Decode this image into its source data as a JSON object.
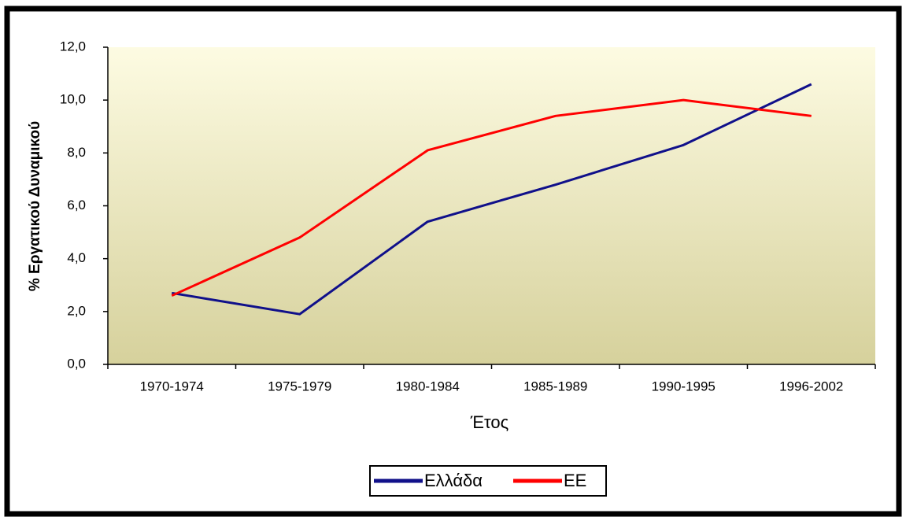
{
  "chart_data": {
    "type": "line",
    "y_label": "% Εργατικού Δυναμικού",
    "x_label": "Έτος",
    "categories": [
      "1970-1974",
      "1975-1979",
      "1980-1984",
      "1985-1989",
      "1990-1995",
      "1996-2002"
    ],
    "series": [
      {
        "name": "Ελλάδα",
        "color": "#10108a",
        "values": [
          2.7,
          1.9,
          5.4,
          6.8,
          8.3,
          10.6
        ]
      },
      {
        "name": "ΕΕ",
        "color": "#ff0000",
        "values": [
          2.6,
          4.8,
          8.1,
          9.4,
          10.0,
          9.4
        ]
      }
    ],
    "ylim": [
      0,
      12
    ],
    "yticks": [
      {
        "value": 0,
        "label": "0,0"
      },
      {
        "value": 2,
        "label": "2,0"
      },
      {
        "value": 4,
        "label": "4,0"
      },
      {
        "value": 6,
        "label": "6,0"
      },
      {
        "value": 8,
        "label": "8,0"
      },
      {
        "value": 10,
        "label": "10,0"
      },
      {
        "value": 12,
        "label": "12,0"
      }
    ],
    "legend": "bottom"
  }
}
